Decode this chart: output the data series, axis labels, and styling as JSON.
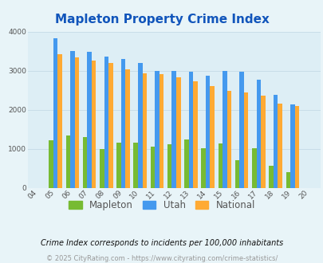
{
  "title": "Mapleton Property Crime Index",
  "years": [
    "04",
    "05",
    "06",
    "07",
    "08",
    "09",
    "10",
    "11",
    "12",
    "13",
    "14",
    "15",
    "16",
    "17",
    "18",
    "19",
    "20"
  ],
  "mapleton": [
    0,
    1230,
    1340,
    1300,
    1000,
    1150,
    1150,
    1060,
    1120,
    1240,
    1020,
    1130,
    720,
    1010,
    570,
    400,
    0
  ],
  "utah": [
    0,
    3820,
    3500,
    3490,
    3360,
    3290,
    3200,
    3000,
    3000,
    2980,
    2880,
    2990,
    2980,
    2770,
    2380,
    2140,
    0
  ],
  "national": [
    0,
    3420,
    3330,
    3260,
    3200,
    3030,
    2940,
    2910,
    2840,
    2720,
    2600,
    2490,
    2450,
    2360,
    2160,
    2100,
    0
  ],
  "mapleton_color": "#77bb33",
  "utah_color": "#4499ee",
  "national_color": "#ffaa33",
  "bg_color": "#e8f4f8",
  "plot_bg_color": "#ddeef5",
  "ylim": [
    0,
    4000
  ],
  "yticks": [
    0,
    1000,
    2000,
    3000,
    4000
  ],
  "legend_labels": [
    "Mapleton",
    "Utah",
    "National"
  ],
  "footnote1": "Crime Index corresponds to incidents per 100,000 inhabitants",
  "footnote2": "© 2025 CityRating.com - https://www.cityrating.com/crime-statistics/",
  "title_color": "#1155bb",
  "footnote1_color": "#111111",
  "footnote2_color": "#999999",
  "tick_label_color": "#555555",
  "bar_width": 0.26,
  "grid_color": "#c8dde8"
}
